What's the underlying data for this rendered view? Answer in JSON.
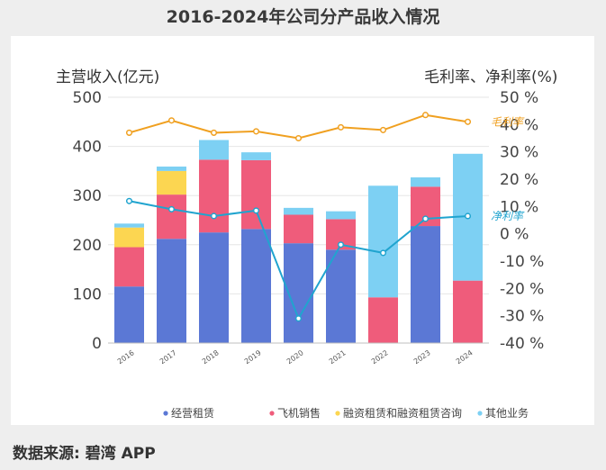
{
  "chart_data": {
    "type": "bar",
    "title": "2016-2024年公司分产品收入情况",
    "ylabel": "主营收入(亿元)",
    "y2label": "毛利率、净利率(%)",
    "categories": [
      "2016",
      "2017",
      "2018",
      "2019",
      "2020",
      "2021",
      "2022",
      "2023",
      "2024"
    ],
    "ylim": [
      0,
      500
    ],
    "yticks": [
      "0",
      "100",
      "200",
      "300",
      "400",
      "500"
    ],
    "y2lim": [
      -40,
      50
    ],
    "y2ticks": [
      "50 %",
      "40 %",
      "30 %",
      "20 %",
      "10 %",
      "0 %",
      "-10 %",
      "-20 %",
      "-30 %",
      "-40 %"
    ],
    "stacked": true,
    "series": [
      {
        "name": "经营租赁",
        "color": "#5b78d5",
        "values": [
          115,
          212,
          225,
          232,
          203,
          190,
          0,
          238,
          0
        ]
      },
      {
        "name": "飞机销售",
        "color": "#ef5c7b",
        "values": [
          80,
          90,
          148,
          140,
          58,
          62,
          93,
          80,
          127
        ]
      },
      {
        "name": "融资租赁和融资租赁咨询",
        "color": "#fcd651",
        "values": [
          40,
          48,
          0,
          0,
          0,
          0,
          0,
          0,
          0
        ]
      },
      {
        "name": "其他业务",
        "color": "#7dd0f3",
        "values": [
          8,
          9,
          40,
          16,
          14,
          16,
          227,
          19,
          258
        ]
      }
    ],
    "lines": [
      {
        "name": "毛利率",
        "label": "毛利率",
        "color": "#f0a020",
        "axis": "right",
        "values": [
          37,
          41.5,
          37,
          37.5,
          35,
          39,
          38,
          43.5,
          41
        ]
      },
      {
        "name": "净利率",
        "label": "净利率",
        "color": "#20a4cf",
        "axis": "right",
        "values": [
          12,
          9,
          6.5,
          8.5,
          -31,
          -4,
          -7,
          5.5,
          6.5
        ]
      }
    ],
    "legend_position": "bottom",
    "grid": true
  },
  "source_text": "数据来源: 碧湾 APP"
}
